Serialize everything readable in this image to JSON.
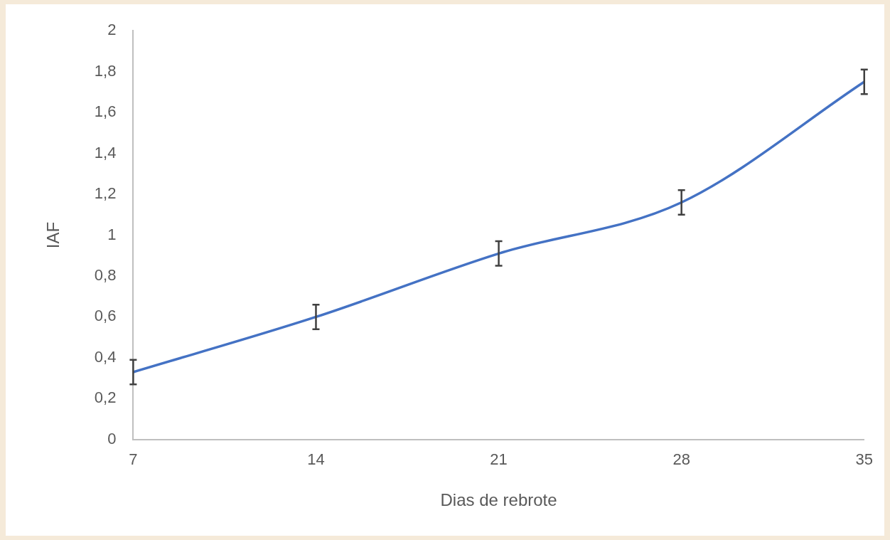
{
  "chart_data": {
    "type": "line",
    "xlabel": "Dias de rebrote",
    "ylabel": "IAF",
    "categories": [
      "7",
      "14",
      "21",
      "28",
      "35"
    ],
    "series": [
      {
        "color": "#4472c4",
        "values": [
          0.33,
          0.6,
          0.91,
          1.16,
          1.75
        ],
        "errors": [
          0.06,
          0.06,
          0.06,
          0.06,
          0.06
        ]
      }
    ],
    "ylim": [
      0,
      2
    ],
    "yticks": [
      0,
      {
        "value": 0.2,
        "label": "0,2"
      },
      {
        "value": 0.4,
        "label": "0,4"
      },
      {
        "value": 0.6,
        "label": "0,6"
      },
      {
        "value": 0.8,
        "label": "0,8"
      },
      1,
      {
        "value": 1.2,
        "label": "1,2"
      },
      {
        "value": 1.4,
        "label": "1,4"
      },
      {
        "value": 1.6,
        "label": "1,6"
      },
      {
        "value": 1.8,
        "label": "1,8"
      },
      2
    ],
    "grid": false,
    "legend": false,
    "marker": "none",
    "line_style": "solid"
  }
}
